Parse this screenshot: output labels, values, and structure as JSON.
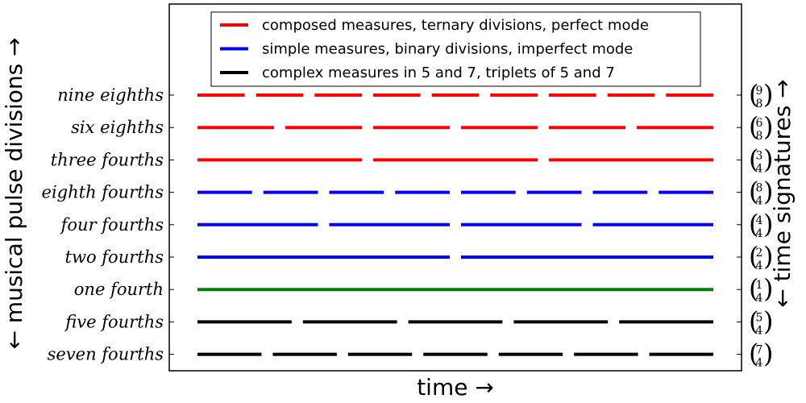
{
  "chart_data": {
    "type": "line",
    "title": "",
    "xlabel": "time →",
    "ylabel": "← musical pulse divisions →",
    "ylabel_right": "← time signatures →",
    "grid": false,
    "legend_placement": "top-center",
    "xlim": [
      0,
      1
    ],
    "series": [
      {
        "label": "nine eighths",
        "signature": [
          "9",
          "8"
        ],
        "group": 0,
        "segments": 9
      },
      {
        "label": "six eighths",
        "signature": [
          "6",
          "8"
        ],
        "group": 0,
        "segments": 6
      },
      {
        "label": "three fourths",
        "signature": [
          "3",
          "4"
        ],
        "group": 0,
        "segments": 3
      },
      {
        "label": "eighth fourths",
        "signature": [
          "8",
          "4"
        ],
        "group": 1,
        "segments": 8
      },
      {
        "label": "four fourths",
        "signature": [
          "4",
          "4"
        ],
        "group": 1,
        "segments": 4
      },
      {
        "label": "two fourths",
        "signature": [
          "2",
          "4"
        ],
        "group": 1,
        "segments": 2
      },
      {
        "label": "one fourth",
        "signature": [
          "1",
          "4"
        ],
        "group": 3,
        "segments": 1
      },
      {
        "label": "five fourths",
        "signature": [
          "5",
          "4"
        ],
        "group": 2,
        "segments": 5
      },
      {
        "label": "seven fourths",
        "signature": [
          "7",
          "4"
        ],
        "group": 2,
        "segments": 7
      }
    ],
    "legend": [
      {
        "label": "composed measures, ternary divisions, perfect mode",
        "color": "#ff0000"
      },
      {
        "label": "simple measures, binary divisions, imperfect mode",
        "color": "#0000ff"
      },
      {
        "label": "complex measures in 5 and 7, triplets of 5 and 7",
        "color": "#000000"
      }
    ],
    "colors": [
      "#ff0000",
      "#0000ff",
      "#000000",
      "#008000"
    ]
  }
}
